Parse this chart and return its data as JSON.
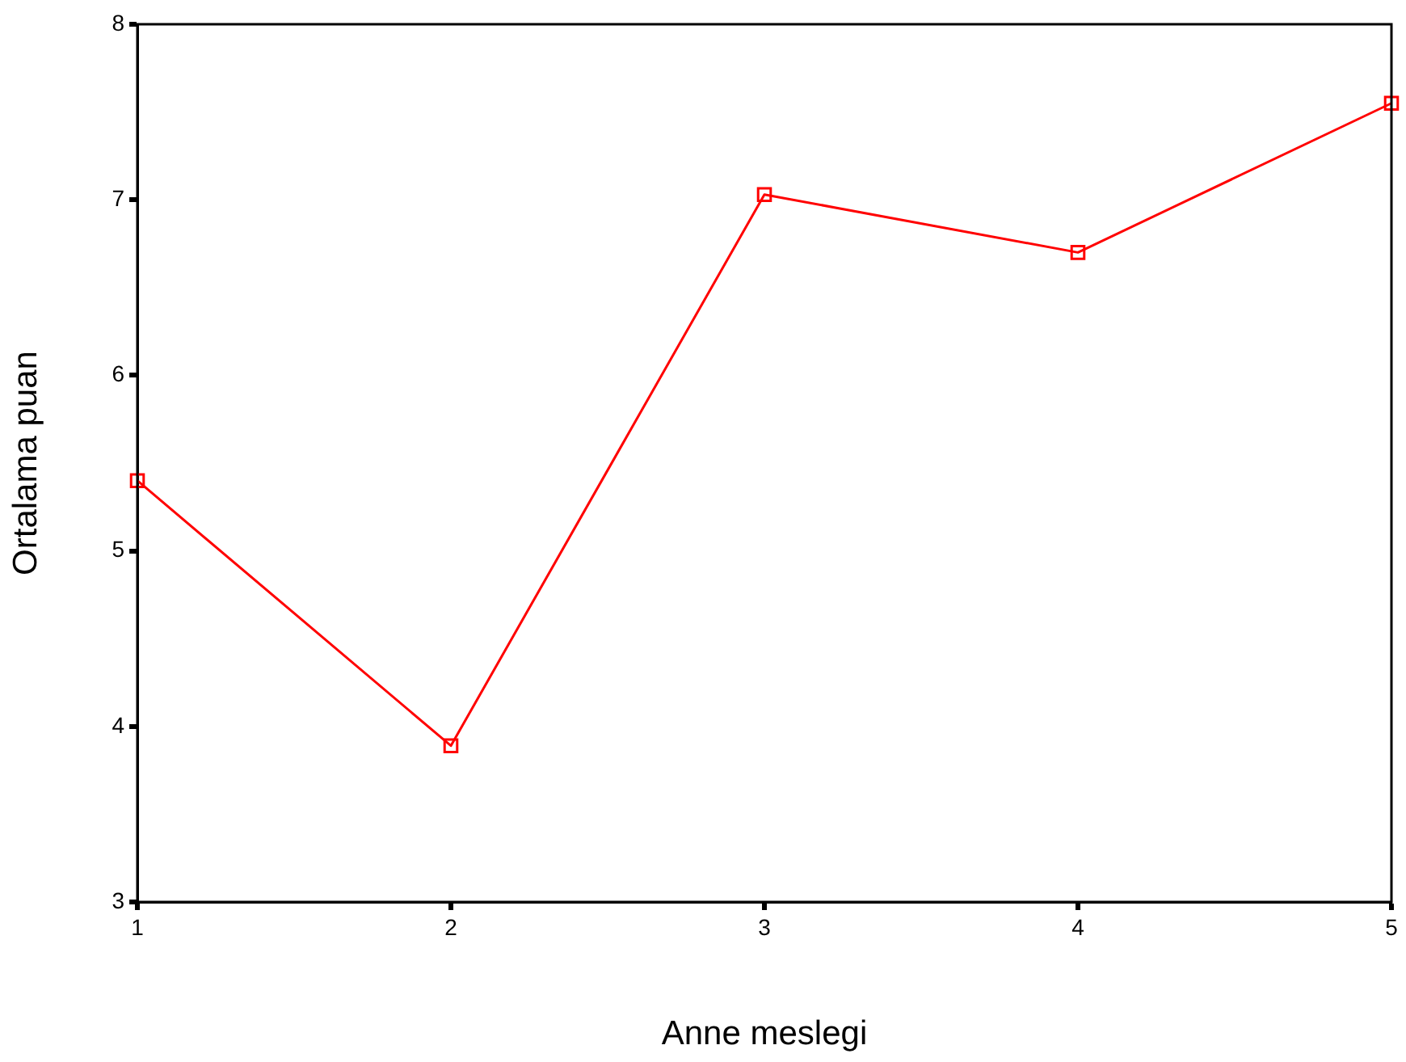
{
  "chart_data": {
    "type": "line",
    "xlabel": "Anne meslegi",
    "ylabel": "Ortalama puan",
    "categories": [
      "1",
      "2",
      "3",
      "4",
      "5"
    ],
    "values": [
      5.4,
      3.89,
      7.03,
      6.7,
      7.55
    ],
    "color": "#ff0000",
    "marker": "square",
    "line_style": "solid",
    "ylim": [
      3,
      8
    ],
    "yticks": [
      3,
      4,
      5,
      6,
      7,
      8
    ]
  }
}
